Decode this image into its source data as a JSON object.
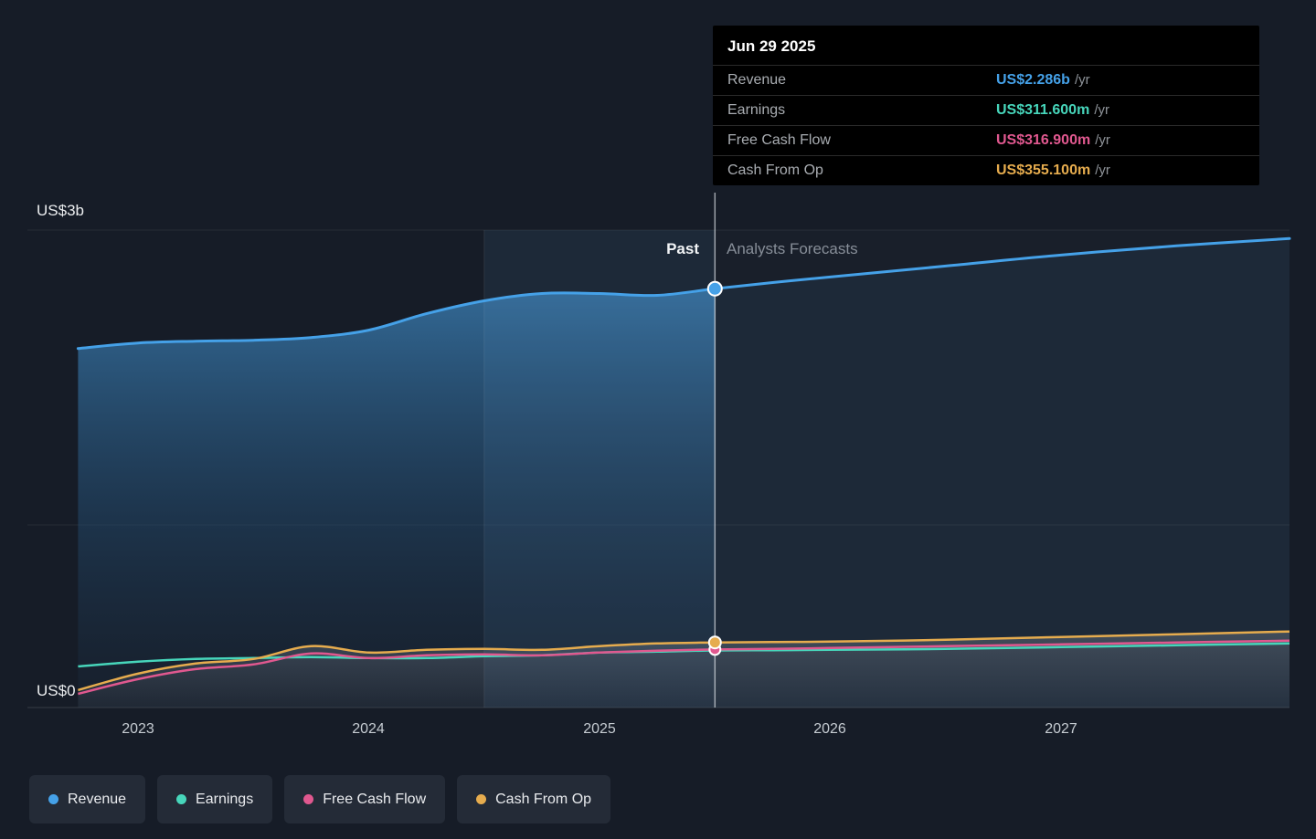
{
  "tooltip": {
    "date": "Jun 29 2025",
    "rows": [
      {
        "label": "Revenue",
        "value": "US$2.286b",
        "suffix": "/yr",
        "color": "#45a1e8"
      },
      {
        "label": "Earnings",
        "value": "US$311.600m",
        "suffix": "/yr",
        "color": "#47d6bb"
      },
      {
        "label": "Free Cash Flow",
        "value": "US$316.900m",
        "suffix": "/yr",
        "color": "#e0588f"
      },
      {
        "label": "Cash From Op",
        "value": "US$355.100m",
        "suffix": "/yr",
        "color": "#e6ac4e"
      }
    ]
  },
  "axis": {
    "y_top_label": "US$3b",
    "y_bottom_label": "US$0",
    "x_ticks": [
      "2023",
      "2024",
      "2025",
      "2026",
      "2027"
    ]
  },
  "annotations": {
    "past": "Past",
    "forecast": "Analysts Forecasts"
  },
  "legend": [
    {
      "label": "Revenue",
      "color": "#45a1e8"
    },
    {
      "label": "Earnings",
      "color": "#47d6bb"
    },
    {
      "label": "Free Cash Flow",
      "color": "#e0588f"
    },
    {
      "label": "Cash From Op",
      "color": "#e6ac4e"
    }
  ],
  "chart_data": {
    "type": "line",
    "unit": "US$ billions per year",
    "title": "",
    "xlabel": "",
    "ylabel": "",
    "ylim": [
      0,
      3
    ],
    "xlim": [
      2022.74,
      2027.99
    ],
    "grid": true,
    "divider_x": 2025.5,
    "divider_date": "Jun 29 2025",
    "x": [
      2022.74,
      2023.0,
      2023.25,
      2023.5,
      2023.75,
      2024.0,
      2024.25,
      2024.5,
      2024.75,
      2025.0,
      2025.25,
      2025.5,
      2025.75,
      2026.0,
      2026.5,
      2027.0,
      2027.5,
      2027.99
    ],
    "series": [
      {
        "name": "Revenue",
        "color": "#45a1e8",
        "value_at_divider": 2.286,
        "values": [
          1.96,
          1.99,
          2.0,
          2.005,
          2.02,
          2.06,
          2.15,
          2.22,
          2.26,
          2.26,
          2.25,
          2.286,
          2.32,
          2.35,
          2.41,
          2.47,
          2.52,
          2.56
        ]
      },
      {
        "name": "Earnings",
        "color": "#47d6bb",
        "value_at_divider": 0.3116,
        "values": [
          0.225,
          0.25,
          0.265,
          0.27,
          0.275,
          0.27,
          0.27,
          0.28,
          0.285,
          0.3,
          0.305,
          0.3116,
          0.313,
          0.315,
          0.32,
          0.33,
          0.34,
          0.35
        ]
      },
      {
        "name": "Free Cash Flow",
        "color": "#e0588f",
        "value_at_divider": 0.3169,
        "values": [
          0.075,
          0.155,
          0.21,
          0.235,
          0.295,
          0.27,
          0.285,
          0.29,
          0.285,
          0.3,
          0.31,
          0.3169,
          0.32,
          0.325,
          0.335,
          0.345,
          0.355,
          0.365
        ]
      },
      {
        "name": "Cash From Op",
        "color": "#e6ac4e",
        "value_at_divider": 0.3551,
        "values": [
          0.095,
          0.185,
          0.24,
          0.265,
          0.335,
          0.3,
          0.315,
          0.32,
          0.315,
          0.335,
          0.35,
          0.3551,
          0.358,
          0.36,
          0.37,
          0.385,
          0.4,
          0.415
        ]
      }
    ],
    "legend_position": "bottom-left"
  }
}
